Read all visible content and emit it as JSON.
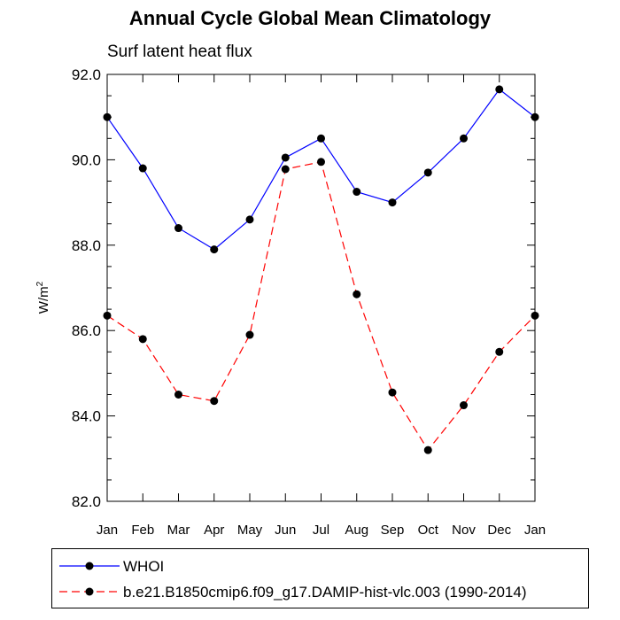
{
  "chart_data": {
    "type": "line",
    "title": "Annual Cycle Global Mean Climatology",
    "subtitle": "Surf latent heat flux",
    "ylabel": "W/m",
    "ylabel_superscript": "2",
    "xlabel": "",
    "categories": [
      "Jan",
      "Feb",
      "Mar",
      "Apr",
      "May",
      "Jun",
      "Jul",
      "Aug",
      "Sep",
      "Oct",
      "Nov",
      "Dec",
      "Jan"
    ],
    "ylim": [
      82.0,
      92.0
    ],
    "yticks": [
      "82.0",
      "84.0",
      "86.0",
      "88.0",
      "90.0",
      "92.0"
    ],
    "ytick_values": [
      82,
      84,
      86,
      88,
      90,
      92
    ],
    "grid": false,
    "legend_position": "bottom",
    "series": [
      {
        "name": "WHOI",
        "color": "#0000ff",
        "line_style": "solid",
        "values": [
          91.0,
          89.8,
          88.4,
          87.9,
          88.6,
          90.05,
          90.5,
          89.25,
          89.0,
          89.7,
          90.5,
          91.65,
          91.0
        ]
      },
      {
        "name": "b.e21.B1850cmip6.f09_g17.DAMIP-hist-vlc.003 (1990-2014)",
        "color": "#ff0000",
        "line_style": "dashed",
        "values": [
          86.35,
          85.8,
          84.5,
          84.35,
          85.9,
          89.78,
          89.95,
          86.85,
          84.55,
          83.2,
          84.25,
          85.5,
          86.35
        ]
      }
    ]
  }
}
